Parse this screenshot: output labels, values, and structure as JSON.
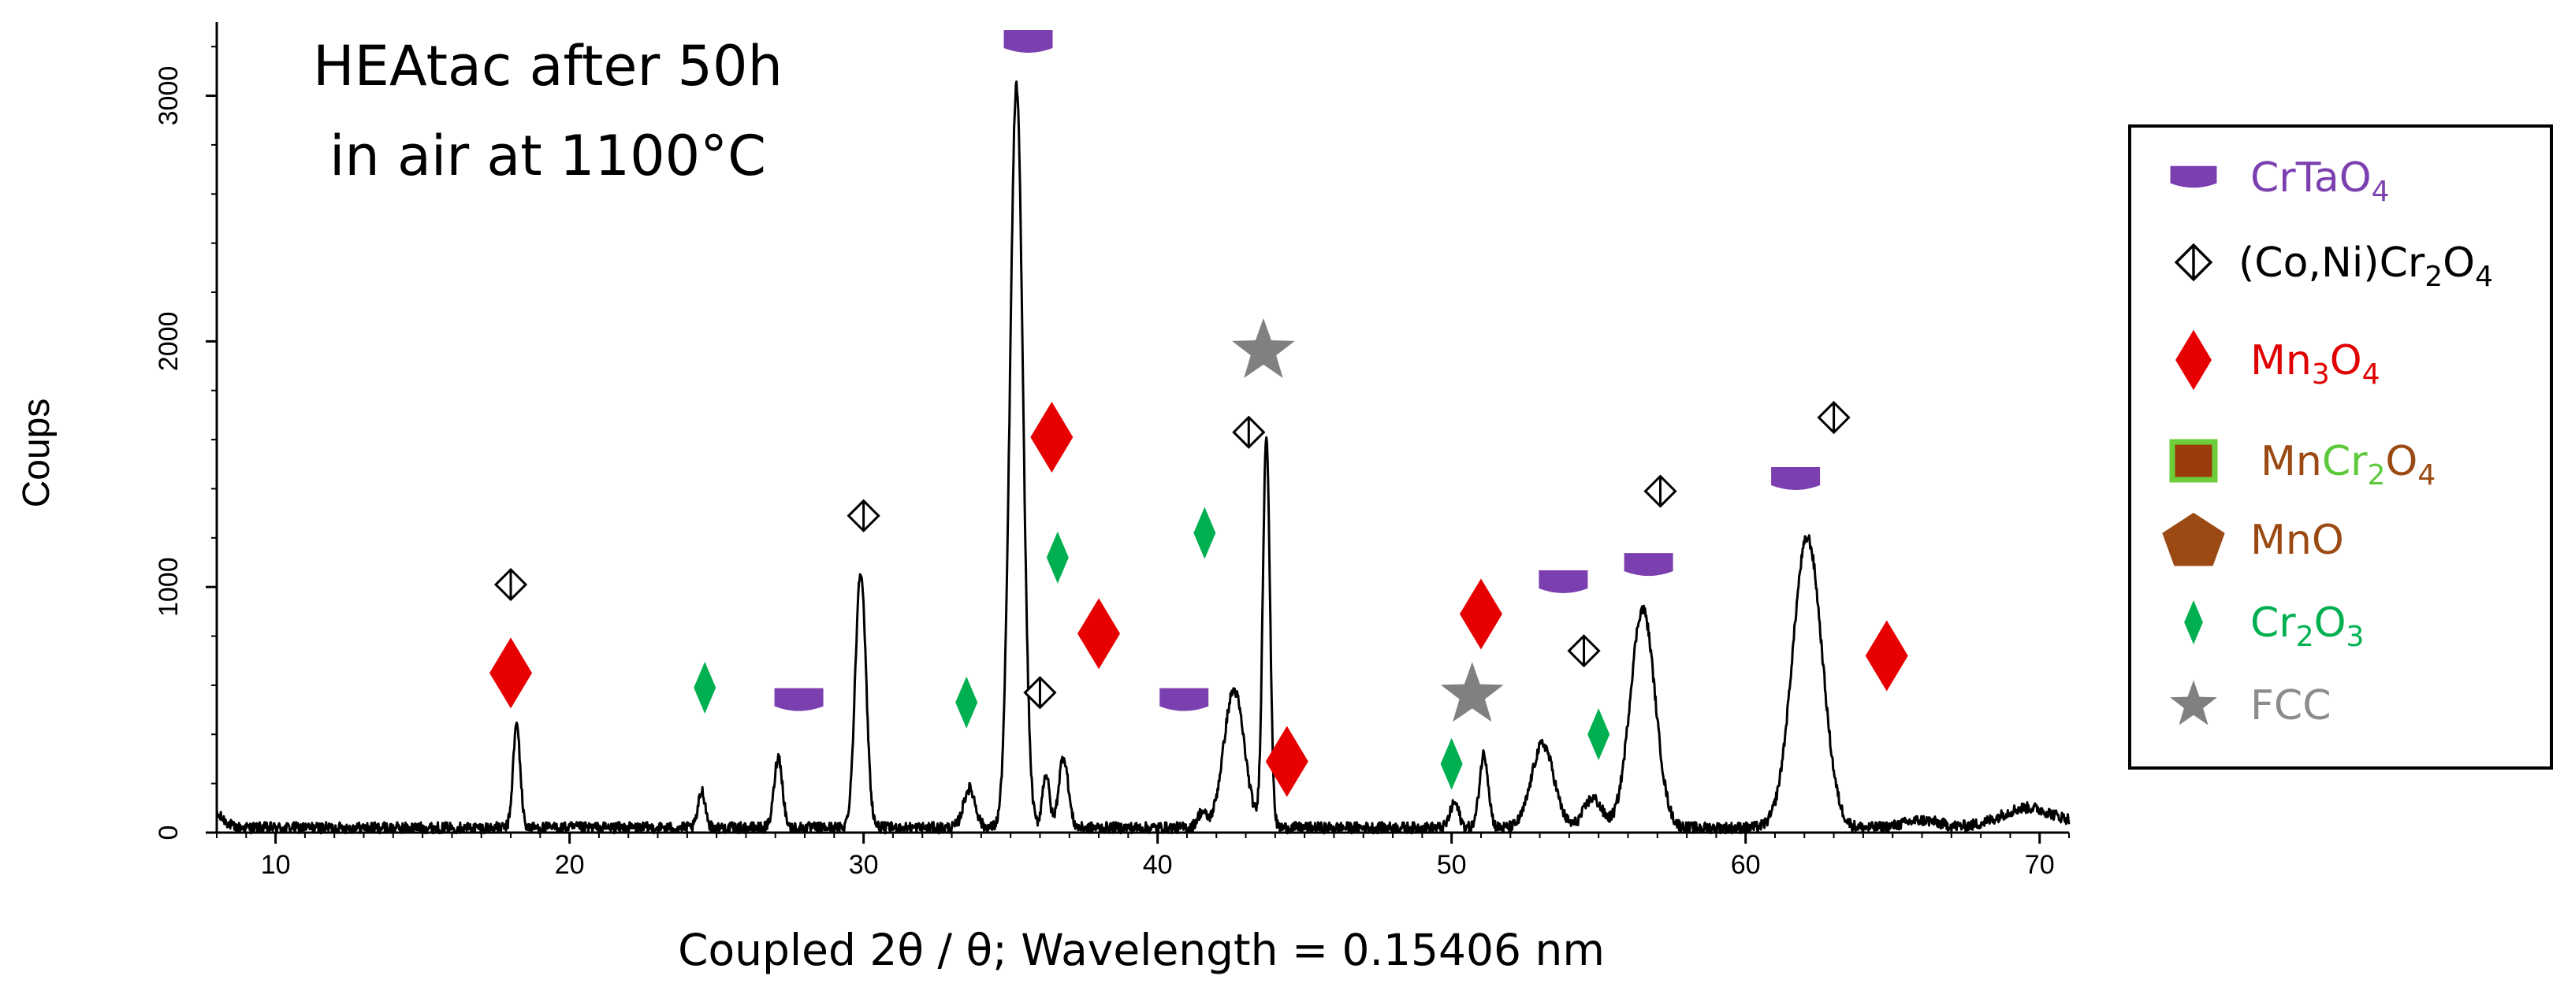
{
  "chart_data": {
    "type": "line",
    "title": "HEAtac after 50h in air at 1100°C",
    "title_lines": [
      "HEAtac after 50h",
      "in air at 1100°C"
    ],
    "xlabel": "Coupled 2θ / θ; Wavelength = 0.15406 nm",
    "ylabel": "Coups",
    "xlim": [
      8,
      71
    ],
    "ylim": [
      0,
      3300
    ],
    "xticks": [
      10,
      20,
      30,
      40,
      50,
      60,
      70
    ],
    "yticks": [
      0,
      1000,
      2000,
      3000
    ],
    "baseline": 20,
    "peaks": [
      {
        "x": 18.2,
        "y": 420,
        "w": 0.12
      },
      {
        "x": 24.5,
        "y": 150,
        "w": 0.12
      },
      {
        "x": 27.1,
        "y": 290,
        "w": 0.14
      },
      {
        "x": 29.9,
        "y": 1050,
        "w": 0.18
      },
      {
        "x": 33.6,
        "y": 160,
        "w": 0.2
      },
      {
        "x": 35.2,
        "y": 3020,
        "w": 0.22
      },
      {
        "x": 36.2,
        "y": 220,
        "w": 0.12
      },
      {
        "x": 36.8,
        "y": 290,
        "w": 0.16
      },
      {
        "x": 41.5,
        "y": 60,
        "w": 0.15
      },
      {
        "x": 42.6,
        "y": 560,
        "w": 0.35
      },
      {
        "x": 43.7,
        "y": 1600,
        "w": 0.12
      },
      {
        "x": 50.1,
        "y": 100,
        "w": 0.15
      },
      {
        "x": 51.1,
        "y": 300,
        "w": 0.15
      },
      {
        "x": 53.1,
        "y": 340,
        "w": 0.38
      },
      {
        "x": 54.8,
        "y": 120,
        "w": 0.3
      },
      {
        "x": 56.5,
        "y": 890,
        "w": 0.42
      },
      {
        "x": 62.1,
        "y": 1180,
        "w": 0.5
      },
      {
        "x": 66.0,
        "y": 30,
        "w": 0.6
      },
      {
        "x": 69.5,
        "y": 60,
        "w": 0.8
      }
    ],
    "markers": [
      {
        "phase": "CoNiCr2O4",
        "x": 18.0,
        "y": 1010
      },
      {
        "phase": "Mn3O4",
        "x": 18.0,
        "y": 650
      },
      {
        "phase": "Cr2O3",
        "x": 24.6,
        "y": 590
      },
      {
        "phase": "CrTaO4",
        "x": 27.8,
        "y": 540
      },
      {
        "phase": "CoNiCr2O4",
        "x": 30.0,
        "y": 1290
      },
      {
        "phase": "Cr2O3",
        "x": 33.5,
        "y": 530
      },
      {
        "phase": "CrTaO4",
        "x": 35.6,
        "y": 3220
      },
      {
        "phase": "CoNiCr2O4",
        "x": 36.0,
        "y": 570
      },
      {
        "phase": "Mn3O4",
        "x": 36.4,
        "y": 1610
      },
      {
        "phase": "Cr2O3",
        "x": 36.6,
        "y": 1120
      },
      {
        "phase": "Mn3O4",
        "x": 38.0,
        "y": 810
      },
      {
        "phase": "CrTaO4",
        "x": 40.9,
        "y": 540
      },
      {
        "phase": "Cr2O3",
        "x": 41.6,
        "y": 1220
      },
      {
        "phase": "CoNiCr2O4",
        "x": 43.1,
        "y": 1630
      },
      {
        "phase": "FCC",
        "x": 43.6,
        "y": 1960
      },
      {
        "phase": "Mn3O4",
        "x": 44.4,
        "y": 290
      },
      {
        "phase": "Cr2O3",
        "x": 50.0,
        "y": 280
      },
      {
        "phase": "FCC",
        "x": 50.7,
        "y": 560
      },
      {
        "phase": "Mn3O4",
        "x": 51.0,
        "y": 890
      },
      {
        "phase": "CrTaO4",
        "x": 53.8,
        "y": 1020
      },
      {
        "phase": "CoNiCr2O4",
        "x": 54.5,
        "y": 740
      },
      {
        "phase": "Cr2O3",
        "x": 55.0,
        "y": 400
      },
      {
        "phase": "CrTaO4",
        "x": 56.7,
        "y": 1090
      },
      {
        "phase": "CoNiCr2O4",
        "x": 57.1,
        "y": 1390
      },
      {
        "phase": "CrTaO4",
        "x": 61.7,
        "y": 1440
      },
      {
        "phase": "CoNiCr2O4",
        "x": 63.0,
        "y": 1690
      },
      {
        "phase": "Mn3O4",
        "x": 64.8,
        "y": 720
      }
    ],
    "legend": {
      "placement": "right",
      "items": [
        {
          "key": "CrTaO4",
          "label_parts": [
            {
              "t": "CrTaO",
              "c": "#7b3fb0"
            },
            {
              "t": "4",
              "c": "#7b3fb0",
              "sub": true
            }
          ]
        },
        {
          "key": "CoNiCr2O4",
          "label_parts": [
            {
              "t": "(Co,Ni)Cr",
              "c": "#000000"
            },
            {
              "t": "2",
              "c": "#000000",
              "sub": true
            },
            {
              "t": "O",
              "c": "#000000"
            },
            {
              "t": "4",
              "c": "#000000",
              "sub": true
            }
          ]
        },
        {
          "key": "Mn3O4",
          "label_parts": [
            {
              "t": "Mn",
              "c": "#e00000"
            },
            {
              "t": "3",
              "c": "#e00000",
              "sub": true
            },
            {
              "t": "O",
              "c": "#e00000"
            },
            {
              "t": "4",
              "c": "#e00000",
              "sub": true
            }
          ]
        },
        {
          "key": "MnCr2O4",
          "label_parts": [
            {
              "t": "Mn",
              "c": "#9a4a12"
            },
            {
              "t": "Cr",
              "c": "#5cc93b"
            },
            {
              "t": "2",
              "c": "#5cc93b",
              "sub": true
            },
            {
              "t": "O",
              "c": "#9a4a12"
            },
            {
              "t": "4",
              "c": "#9a4a12",
              "sub": true
            }
          ]
        },
        {
          "key": "MnO",
          "label_parts": [
            {
              "t": "MnO",
              "c": "#9a4a12"
            }
          ]
        },
        {
          "key": "Cr2O3",
          "label_parts": [
            {
              "t": "Cr",
              "c": "#00b050"
            },
            {
              "t": "2",
              "c": "#00b050",
              "sub": true
            },
            {
              "t": "O",
              "c": "#00b050"
            },
            {
              "t": "3",
              "c": "#00b050",
              "sub": true
            }
          ]
        },
        {
          "key": "FCC",
          "label_parts": [
            {
              "t": "FCC",
              "c": "#8c8c8c"
            }
          ]
        }
      ]
    },
    "colors": {
      "CrTaO4": "#7b3fb0",
      "CoNiCr2O4": "#000000",
      "Mn3O4": "#e60000",
      "MnCr2O4_fill": "#9a3d0c",
      "MnCr2O4_border": "#6ccf3a",
      "MnO": "#9a4a12",
      "Cr2O3": "#00b050",
      "FCC": "#808080"
    }
  }
}
